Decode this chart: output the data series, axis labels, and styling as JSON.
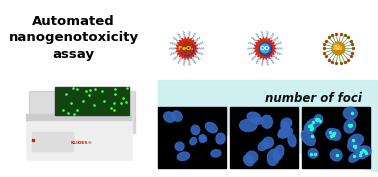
{
  "bg_color": "#ffffff",
  "title_text": "Automated\nnanogenotoxicity\nassay",
  "title_color": "#000000",
  "title_fontsize": 9.5,
  "foci_text": "number of foci",
  "foci_color": "#111111",
  "foci_fontsize": 8.5,
  "np1_coat_color": "#dd2200",
  "np2_coat_color": "#dd2200",
  "np3_coat_color": "#226622",
  "np1_core_color": "#cc3300",
  "np1_inner_color": "#993300",
  "np2_core_color": "#2266cc",
  "np2_inner_color": "#44aacc",
  "np3_core_color": "#cc8800",
  "np3_highlight_color": "#eebb44",
  "spine_color": "#7799cc",
  "np3_spine_color": "#336633",
  "np3_tip_color": "#cc2200",
  "label_color1": "#ffcc22",
  "label_color2": "#eeeeff",
  "label_color3": "#eecc66",
  "teal_bg_color": "#c8eef0",
  "micro_bg": "#000000",
  "cell_color": "#3366bb",
  "foci_dot_color": "#22ffcc",
  "machine_body_color": "#eeeeee",
  "machine_top_color": "#cccccc",
  "machine_screen_bg": "#114411",
  "machine_screen_dot": "#44ff44",
  "klides_color": "#cc2200",
  "dot_ring_color": "#2233aa"
}
